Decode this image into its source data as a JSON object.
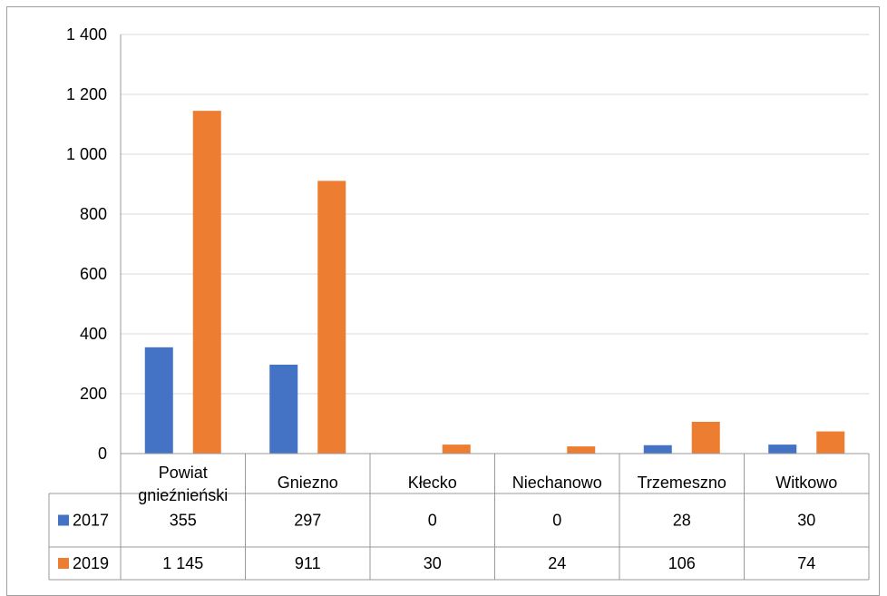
{
  "chart_data": {
    "type": "bar",
    "categories": [
      "Powiat gnieźnieński",
      "Gniezno",
      "Kłecko",
      "Niechanowo",
      "Trzemeszno",
      "Witkowo"
    ],
    "category_lines": [
      [
        "Powiat",
        "gnieźnieński"
      ],
      [
        "Gniezno"
      ],
      [
        "Kłecko"
      ],
      [
        "Niechanowo"
      ],
      [
        "Trzemeszno"
      ],
      [
        "Witkowo"
      ]
    ],
    "series": [
      {
        "name": "2017",
        "color": "#4472c4",
        "values": [
          355,
          297,
          0,
          0,
          28,
          30
        ],
        "labels": [
          "355",
          "297",
          "0",
          "0",
          "28",
          "30"
        ]
      },
      {
        "name": "2019",
        "color": "#ed7d31",
        "values": [
          1145,
          911,
          30,
          24,
          106,
          74
        ],
        "labels": [
          "1 145",
          "911",
          "30",
          "24",
          "106",
          "74"
        ]
      }
    ],
    "ylim": [
      0,
      1400
    ],
    "yticks": [
      0,
      200,
      400,
      600,
      800,
      1000,
      1200,
      1400
    ],
    "ytick_labels": [
      "0",
      "200",
      "400",
      "600",
      "800",
      "1 000",
      "1 200",
      "1 400"
    ],
    "grid": true,
    "legend": "data-table",
    "title": "",
    "xlabel": "",
    "ylabel": ""
  }
}
